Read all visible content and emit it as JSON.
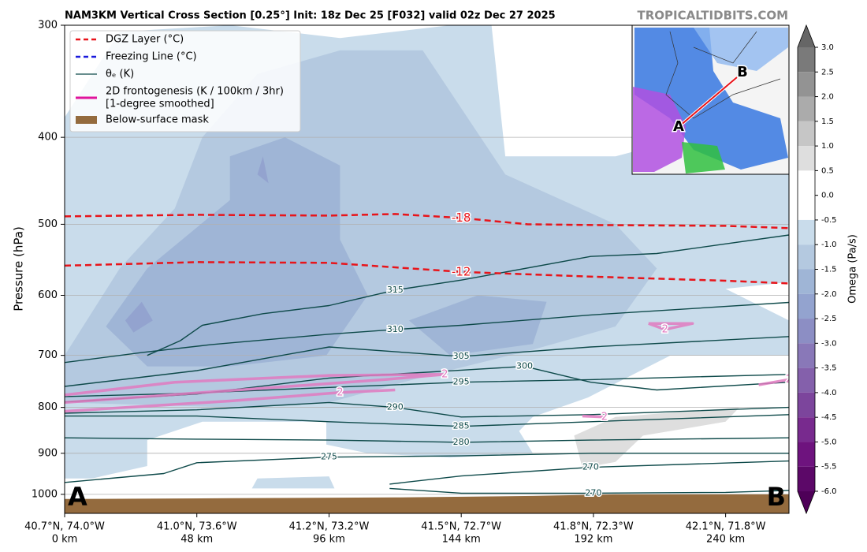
{
  "chart_data": {
    "type": "cross-section",
    "title": "NAM3KM Vertical Cross Section [0.25°] Init: 18z Dec 25 [F032] valid 02z Dec 27 2025",
    "watermark": "TROPICALTIDBITS.COM",
    "y_label": "Pressure (hPa)",
    "xlim": [
      0,
      263
    ],
    "ylim": [
      1050,
      300
    ],
    "y_scale": "log",
    "grid": true,
    "yticks": [
      300,
      400,
      500,
      600,
      700,
      800,
      900,
      1000
    ],
    "xticks": [
      {
        "value": 0,
        "label": "0 km"
      },
      {
        "value": 48,
        "label": "48 km"
      },
      {
        "value": 96,
        "label": "96 km"
      },
      {
        "value": 144,
        "label": "144 km"
      },
      {
        "value": 192,
        "label": "192 km"
      },
      {
        "value": 240,
        "label": "240 km"
      }
    ],
    "x_coordinates": [
      "40.7°N, 74.0°W",
      "41.0°N, 73.6°W",
      "41.2°N, 73.2°W",
      "41.5°N, 72.7°W",
      "41.8°N, 72.3°W",
      "42.1°N, 71.8°W"
    ],
    "section_end_labels": [
      "A",
      "B"
    ],
    "colorbar": {
      "label": "Omega (Pa/s)",
      "lim": [
        -6,
        3
      ],
      "ticks": [
        {
          "value": 3,
          "label": "3.0"
        },
        2.5,
        {
          "value": 2,
          "label": "2.0"
        },
        1.5,
        {
          "value": 1,
          "label": "1.0"
        },
        0.5,
        {
          "value": 0,
          "label": "0.0"
        },
        -0.5,
        {
          "value": -1,
          "label": "-1.0"
        },
        -1.5,
        {
          "value": -2,
          "label": "-2.0"
        },
        -2.5,
        {
          "value": -3,
          "label": "-3.0"
        },
        -3.5,
        {
          "value": -4,
          "label": "-4.0"
        },
        -4.5,
        {
          "value": -5,
          "label": "-5.0"
        },
        -5.5,
        {
          "value": -6,
          "label": "-6.0"
        }
      ],
      "colors": [
        "#7a7a7a",
        "#939393",
        "#ababab",
        "#c6c6c6",
        "#dedede",
        "#ffffff",
        "#ffffff",
        "#c9dceb",
        "#b4c9e0",
        "#9fb5d6",
        "#93a3cf",
        "#8c8ec4",
        "#8978b8",
        "#8460ab",
        "#7c459c",
        "#782a8e",
        "#6e137e",
        "#5c0868"
      ],
      "extend_colors": [
        "#4e0058",
        "#666666"
      ]
    },
    "omega": {
      "regions": [
        {
          "level": -0.5,
          "color": "#c9dceb",
          "points": [
            [
              0,
              1000
            ],
            [
              0,
              380
            ],
            [
              20,
              305
            ],
            [
              60,
              300
            ],
            [
              100,
              310
            ],
            [
              140,
              300
            ],
            [
              155,
              300
            ],
            [
              160,
              420
            ],
            [
              200,
              420
            ],
            [
              240,
              390
            ],
            [
              263,
              400
            ],
            [
              263,
              580
            ],
            [
              240,
              590
            ],
            [
              263,
              640
            ],
            [
              263,
              700
            ],
            [
              220,
              700
            ],
            [
              190,
              780
            ],
            [
              170,
              820
            ],
            [
              165,
              850
            ],
            [
              170,
              900
            ],
            [
              140,
              910
            ],
            [
              110,
              900
            ],
            [
              95,
              880
            ],
            [
              95,
              830
            ],
            [
              50,
              830
            ],
            [
              30,
              870
            ],
            [
              30,
              930
            ],
            [
              10,
              960
            ],
            [
              0,
              960
            ]
          ]
        },
        {
          "level": -0.5,
          "color": "#c9dceb",
          "points": [
            [
              68,
              985
            ],
            [
              98,
              985
            ],
            [
              96,
              955
            ],
            [
              70,
              960
            ]
          ]
        },
        {
          "level": -1,
          "color": "#b4c9e0",
          "points": [
            [
              0,
              700
            ],
            [
              20,
              560
            ],
            [
              40,
              480
            ],
            [
              50,
              400
            ],
            [
              70,
              340
            ],
            [
              100,
              320
            ],
            [
              130,
              320
            ],
            [
              160,
              440
            ],
            [
              200,
              500
            ],
            [
              215,
              560
            ],
            [
              200,
              650
            ],
            [
              170,
              690
            ],
            [
              130,
              740
            ],
            [
              96,
              790
            ],
            [
              60,
              800
            ],
            [
              0,
              790
            ]
          ]
        },
        {
          "level": -1.5,
          "color": "#9fb5d6",
          "points": [
            [
              15,
              650
            ],
            [
              30,
              560
            ],
            [
              60,
              470
            ],
            [
              60,
              420
            ],
            [
              80,
              400
            ],
            [
              100,
              430
            ],
            [
              100,
              520
            ],
            [
              110,
              600
            ],
            [
              95,
              700
            ],
            [
              60,
              720
            ],
            [
              30,
              720
            ]
          ]
        },
        {
          "level": -1.5,
          "color": "#9fb5d6",
          "points": [
            [
              125,
              640
            ],
            [
              150,
              600
            ],
            [
              175,
              610
            ],
            [
              170,
              680
            ],
            [
              140,
              700
            ]
          ]
        },
        {
          "level": -2,
          "color": "#93a3cf",
          "points": [
            [
              22,
              640
            ],
            [
              28,
              610
            ],
            [
              32,
              640
            ],
            [
              25,
              660
            ]
          ]
        },
        {
          "level": -2,
          "color": "#93a3cf",
          "points": [
            [
              70,
              440
            ],
            [
              72,
              420
            ],
            [
              74,
              450
            ]
          ]
        },
        {
          "level": 0.5,
          "color": "#dedede",
          "points": [
            [
              185,
              860
            ],
            [
              200,
              820
            ],
            [
              245,
              800
            ],
            [
              240,
              830
            ],
            [
              210,
              860
            ],
            [
              200,
              920
            ],
            [
              188,
              935
            ]
          ]
        }
      ]
    },
    "surface_mask": {
      "color": "#946b3e",
      "points": [
        [
          0,
          1012
        ],
        [
          60,
          1010
        ],
        [
          120,
          1008
        ],
        [
          170,
          1004
        ],
        [
          200,
          1000
        ],
        [
          263,
          1000
        ]
      ]
    },
    "theta_e": {
      "color": "#0e4a4a",
      "contours": [
        {
          "level": 315,
          "points": [
            [
              30,
              700
            ],
            [
              42,
              674
            ],
            [
              50,
              648
            ],
            [
              72,
              629
            ],
            [
              96,
              616
            ],
            [
              120,
              592
            ],
            [
              144,
              577
            ],
            [
              191,
              543
            ],
            [
              215,
              539
            ],
            [
              263,
              514
            ]
          ]
        },
        {
          "level": 310,
          "points": [
            [
              0,
              713
            ],
            [
              28,
              695
            ],
            [
              53,
              681
            ],
            [
              96,
              663
            ],
            [
              120,
              655
            ],
            [
              144,
              648
            ],
            [
              191,
              631
            ],
            [
              263,
              611
            ]
          ]
        },
        {
          "level": 305,
          "points": [
            [
              0,
              758
            ],
            [
              48,
              728
            ],
            [
              96,
              685
            ],
            [
              144,
              702
            ],
            [
              191,
              685
            ],
            [
              263,
              667
            ]
          ]
        },
        {
          "level": 300,
          "points": [
            [
              0,
              789
            ],
            [
              48,
              773
            ],
            [
              96,
              742
            ],
            [
              144,
              727
            ],
            [
              167,
              720
            ],
            [
              191,
              750
            ],
            [
              215,
              765
            ],
            [
              263,
              750
            ]
          ]
        },
        {
          "level": 295,
          "points": [
            [
              0,
              778
            ],
            [
              48,
              771
            ],
            [
              96,
              760
            ],
            [
              144,
              750
            ],
            [
              191,
              745
            ],
            [
              263,
              735
            ]
          ]
        },
        {
          "level": 290,
          "points": [
            [
              0,
              812
            ],
            [
              48,
              805
            ],
            [
              96,
              790
            ],
            [
              120,
              800
            ],
            [
              144,
              820
            ],
            [
              191,
              815
            ],
            [
              263,
              800
            ]
          ]
        },
        {
          "level": 285,
          "points": [
            [
              0,
              818
            ],
            [
              48,
              818
            ],
            [
              96,
              830
            ],
            [
              144,
              840
            ],
            [
              191,
              830
            ],
            [
              263,
              815
            ]
          ]
        },
        {
          "level": 280,
          "points": [
            [
              0,
              865
            ],
            [
              48,
              868
            ],
            [
              96,
              870
            ],
            [
              144,
              875
            ],
            [
              191,
              870
            ],
            [
              263,
              865
            ]
          ]
        },
        {
          "level": 275,
          "points": [
            [
              0,
              970
            ],
            [
              36,
              948
            ],
            [
              48,
              922
            ],
            [
              96,
              909
            ],
            [
              144,
              906
            ],
            [
              191,
              900
            ],
            [
              263,
              900
            ]
          ]
        },
        {
          "level": 270,
          "points": [
            [
              118,
              974
            ],
            [
              144,
              954
            ],
            [
              191,
              933
            ],
            [
              263,
              918
            ]
          ]
        },
        {
          "level": 270,
          "points": [
            [
              118,
              985
            ],
            [
              144,
              997
            ],
            [
              192,
              997
            ],
            [
              240,
              995
            ],
            [
              263,
              990
            ]
          ]
        }
      ]
    },
    "dgz": {
      "color": "#e8141a",
      "contours": [
        {
          "level": -18,
          "points": [
            [
              0,
              490
            ],
            [
              48,
              488
            ],
            [
              96,
              489
            ],
            [
              120,
              487
            ],
            [
              144,
              492
            ],
            [
              168,
              500
            ],
            [
              192,
              501
            ],
            [
              240,
              502
            ],
            [
              263,
              505
            ]
          ]
        },
        {
          "level": -12,
          "points": [
            [
              0,
              556
            ],
            [
              48,
              551
            ],
            [
              96,
              552
            ],
            [
              144,
              565
            ],
            [
              192,
              572
            ],
            [
              240,
              578
            ],
            [
              263,
              582
            ]
          ]
        }
      ]
    },
    "frontogenesis": {
      "color": "#e07ac0",
      "contours": [
        {
          "level": 2,
          "points": [
            [
              0,
              775
            ],
            [
              40,
              750
            ],
            [
              96,
              737
            ],
            [
              138,
              735
            ],
            [
              116,
              745
            ],
            [
              50,
              770
            ],
            [
              0,
              790
            ]
          ]
        },
        {
          "level": 2,
          "points": [
            [
              0,
              808
            ],
            [
              60,
              787
            ],
            [
              100,
              770
            ],
            [
              120,
              765
            ]
          ]
        },
        {
          "level": 2,
          "points": [
            [
              212,
              645
            ],
            [
              228,
              645
            ],
            [
              218,
              655
            ],
            [
              212,
              645
            ]
          ]
        },
        {
          "level": 2,
          "points": [
            [
              252,
              755
            ],
            [
              263,
              745
            ]
          ]
        },
        {
          "level": 2,
          "points": [
            [
              188,
              818
            ],
            [
              196,
              820
            ]
          ]
        }
      ]
    },
    "legend": {
      "corner": "upper left",
      "entries": [
        {
          "name": "DGZ Layer (°C)",
          "color": "#e8141a",
          "style": "dashed"
        },
        {
          "name": "Freezing Line (°C)",
          "color": "#1a1adc",
          "style": "dashed"
        },
        {
          "name": "θₑ (K)",
          "color": "#0e4a4a",
          "style": "solid"
        },
        {
          "name": [
            "2D frontogenesis (K / 100km / 3hr)",
            "[1-degree smoothed]"
          ],
          "color": "#e0149c",
          "style": "thick"
        },
        {
          "name": "Below-surface mask",
          "color": "#946b3e",
          "style": "patch"
        }
      ]
    },
    "inset": {
      "labels": [
        "A",
        "B"
      ]
    }
  }
}
